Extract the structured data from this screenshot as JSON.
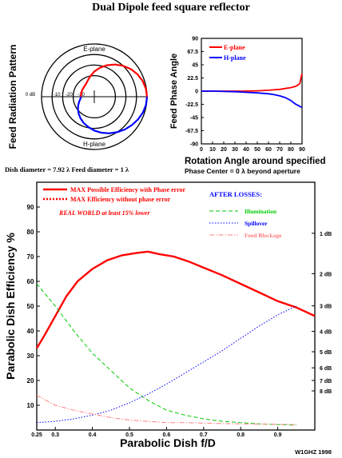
{
  "title": "Dual Dipole feed square reflector",
  "credit": "W1GHZ 1998",
  "colors": {
    "red": "#ff0000",
    "blue": "#0000ff",
    "green": "#00cc00",
    "pink": "#ff8080",
    "axis": "#000000"
  },
  "chart_data": [
    {
      "type": "polar",
      "ylabel": "Feed Radiation Pattern",
      "top_label": "E-plane",
      "bottom_label": "H-plane",
      "ring_labels": [
        "0 dB",
        "-10",
        "-20",
        "-30"
      ],
      "caption": "Dish diameter = 7.92 λ Feed diameter = 1 λ",
      "ring_range_db": [
        -30,
        0
      ],
      "series": [
        {
          "name": "E-plane",
          "color": "#ff0000",
          "angle_deg": [
            0,
            10,
            20,
            30,
            40,
            50,
            60,
            70,
            80,
            90,
            100,
            110,
            120,
            130,
            140,
            150,
            160,
            170,
            180
          ],
          "db": [
            0,
            -0.3,
            -1,
            -2.2,
            -3.8,
            -6,
            -8.7,
            -11.8,
            -15.2,
            -18.8,
            -22.5,
            -25.5,
            -27.5,
            -28.5,
            -29,
            -29.3,
            -29.6,
            -29.8,
            -30
          ]
        },
        {
          "name": "H-plane",
          "color": "#0000ff",
          "angle_deg": [
            0,
            10,
            20,
            30,
            40,
            50,
            60,
            70,
            80,
            90,
            100,
            110,
            120,
            130,
            140,
            150,
            160,
            170,
            180
          ],
          "db": [
            0,
            -0.2,
            -0.8,
            -1.7,
            -2.8,
            -4,
            -5.5,
            -7.2,
            -9.2,
            -11.5,
            -14,
            -16.5,
            -19,
            -21.5,
            -23.8,
            -26,
            -27.8,
            -29.2,
            -30
          ]
        }
      ]
    },
    {
      "type": "line",
      "ylabel": "Feed Phase Angle",
      "xlabel": "Rotation Angle around specified",
      "subcaption": "Phase Center = 0 λ beyond aperture",
      "xlim": [
        0,
        90
      ],
      "ylim": [
        -90,
        90
      ],
      "xticks": [
        0,
        10,
        20,
        30,
        40,
        50,
        60,
        70,
        80,
        90
      ],
      "yticks": [
        90,
        67.5,
        45,
        22.5,
        0,
        -22.5,
        -45,
        -67.5,
        -90
      ],
      "ytick_labels": [
        "90",
        "67.5",
        "45",
        "22.5",
        "0",
        "-22.5",
        "-45",
        "-67.5",
        "-90"
      ],
      "series": [
        {
          "name": "E-plane",
          "color": "#ff0000",
          "x": [
            0,
            10,
            20,
            30,
            40,
            50,
            60,
            70,
            75,
            80,
            84,
            86,
            88,
            89,
            90
          ],
          "y": [
            0,
            0,
            0,
            0,
            0,
            0.5,
            1.5,
            3,
            4.5,
            6,
            8,
            10,
            13,
            22,
            30
          ]
        },
        {
          "name": "H-plane",
          "color": "#0000ff",
          "x": [
            0,
            10,
            20,
            30,
            40,
            50,
            60,
            65,
            70,
            75,
            80,
            84,
            86,
            88,
            90
          ],
          "y": [
            0,
            0,
            -0.5,
            -1,
            -2,
            -3,
            -4.5,
            -6,
            -8,
            -11,
            -16,
            -22,
            -24,
            -26,
            -28
          ]
        }
      ]
    },
    {
      "type": "line",
      "xlabel": "Parabolic Dish f/D",
      "ylabel": "Parabolic Dish Efficiency %",
      "xlim": [
        0.25,
        1.0
      ],
      "ylim": [
        0,
        100
      ],
      "xticks": [
        0.25,
        0.3,
        0.4,
        0.5,
        0.6,
        0.7,
        0.8,
        0.9
      ],
      "xtick_labels": [
        "0.25",
        "0.3",
        "0.4",
        "0.5",
        "0.6",
        "0.7",
        "0.8",
        "0.9"
      ],
      "yticks": [
        10,
        20,
        30,
        40,
        50,
        60,
        70,
        80,
        90
      ],
      "right_db_ticks": [
        {
          "label": "1 dB",
          "eff": 79.4
        },
        {
          "label": "2 dB",
          "eff": 63.1
        },
        {
          "label": "3 dB",
          "eff": 50.1
        },
        {
          "label": "4 dB",
          "eff": 39.8
        },
        {
          "label": "5 dB",
          "eff": 31.6
        },
        {
          "label": "6 dB",
          "eff": 25.1
        },
        {
          "label": "7 dB",
          "eff": 20.0
        },
        {
          "label": "8 dB",
          "eff": 15.8
        }
      ],
      "legend_left": [
        {
          "label": "MAX Possible Efficiency with Phase error",
          "color": "#ff0000",
          "style": "solid"
        },
        {
          "label": "MAX Efficiency without phase error",
          "color": "#ff0000",
          "style": "dotted"
        }
      ],
      "note": "REAL WORLD at least 15% lower",
      "after_losses_title": "AFTER LOSSES:",
      "legend_right": [
        {
          "label": "Illumination",
          "color": "#00cc00",
          "style": "dashed"
        },
        {
          "label": "Spillover",
          "color": "#0000ff",
          "style": "dotted"
        },
        {
          "label": "Feed Blockage",
          "color": "#ff8080",
          "style": "dashdot"
        }
      ],
      "series": [
        {
          "name": "MAX Possible Efficiency with Phase error",
          "color": "#ff0000",
          "x": [
            0.25,
            0.27,
            0.3,
            0.33,
            0.36,
            0.4,
            0.44,
            0.48,
            0.52,
            0.55,
            0.58,
            0.62,
            0.66,
            0.7,
            0.75,
            0.8,
            0.85,
            0.9,
            0.95,
            1.0
          ],
          "y": [
            33,
            38,
            46,
            54,
            60,
            65,
            68.5,
            70.5,
            71.5,
            72,
            71,
            70,
            68,
            65.5,
            62.5,
            59,
            55.5,
            52,
            49.5,
            46
          ]
        },
        {
          "name": "Illumination",
          "color": "#00cc00",
          "x": [
            0.25,
            0.3,
            0.35,
            0.4,
            0.45,
            0.5,
            0.55,
            0.6,
            0.65,
            0.7,
            0.75,
            0.8,
            0.85,
            0.9,
            0.95
          ],
          "y": [
            59,
            50,
            40,
            31,
            24,
            17,
            12,
            8,
            6,
            4.5,
            3.5,
            3,
            2.5,
            2.2,
            2
          ]
        },
        {
          "name": "Spillover",
          "color": "#0000ff",
          "x": [
            0.25,
            0.3,
            0.35,
            0.4,
            0.45,
            0.5,
            0.55,
            0.6,
            0.65,
            0.7,
            0.75,
            0.8,
            0.85,
            0.9,
            0.95
          ],
          "y": [
            3,
            3.5,
            4.5,
            6,
            8,
            11,
            14.5,
            18.5,
            23,
            27.5,
            32,
            37,
            42,
            46.5,
            50
          ]
        },
        {
          "name": "Feed Blockage",
          "color": "#ff8080",
          "x": [
            0.25,
            0.3,
            0.35,
            0.4,
            0.45,
            0.5,
            0.55,
            0.6,
            0.65,
            0.7,
            0.75,
            0.8,
            0.85,
            0.9,
            0.95
          ],
          "y": [
            14,
            10,
            8,
            6.5,
            5,
            4,
            3.5,
            3,
            3,
            2.8,
            2.6,
            2.5,
            2.4,
            2.3,
            2.2
          ]
        }
      ]
    }
  ]
}
